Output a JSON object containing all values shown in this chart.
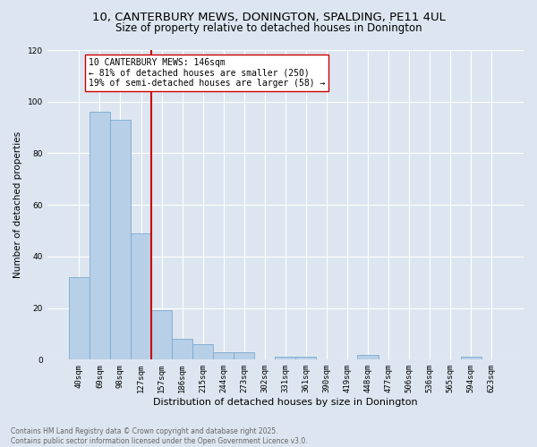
{
  "title_line1": "10, CANTERBURY MEWS, DONINGTON, SPALDING, PE11 4UL",
  "title_line2": "Size of property relative to detached houses in Donington",
  "xlabel": "Distribution of detached houses by size in Donington",
  "ylabel": "Number of detached properties",
  "bg_color": "#dde6f0",
  "bar_color": "#b8cfe8",
  "bar_edge_color": "#7aaad0",
  "grid_color": "#ffffff",
  "annotation_line_color": "#cc0000",
  "annotation_text": "10 CANTERBURY MEWS: 146sqm\n← 81% of detached houses are smaller (250)\n19% of semi-detached houses are larger (58) →",
  "annotation_box_color": "#ffffff",
  "annotation_box_edge": "#cc0000",
  "footnote_line1": "Contains HM Land Registry data © Crown copyright and database right 2025.",
  "footnote_line2": "Contains public sector information licensed under the Open Government Licence v3.0.",
  "categories": [
    "40sqm",
    "69sqm",
    "98sqm",
    "127sqm",
    "157sqm",
    "186sqm",
    "215sqm",
    "244sqm",
    "273sqm",
    "302sqm",
    "331sqm",
    "361sqm",
    "390sqm",
    "419sqm",
    "448sqm",
    "477sqm",
    "506sqm",
    "536sqm",
    "565sqm",
    "594sqm",
    "623sqm"
  ],
  "values": [
    32,
    96,
    93,
    49,
    19,
    8,
    6,
    3,
    3,
    0,
    1,
    1,
    0,
    0,
    2,
    0,
    0,
    0,
    0,
    1,
    0
  ],
  "ylim": [
    0,
    120
  ],
  "yticks": [
    0,
    20,
    40,
    60,
    80,
    100,
    120
  ],
  "vline_x": 3.5,
  "title1_fontsize": 9.5,
  "title2_fontsize": 8.5,
  "xlabel_fontsize": 8,
  "ylabel_fontsize": 7.5,
  "tick_fontsize": 6.5,
  "annot_fontsize": 7,
  "footnote_fontsize": 5.5,
  "footnote_color": "#666666"
}
